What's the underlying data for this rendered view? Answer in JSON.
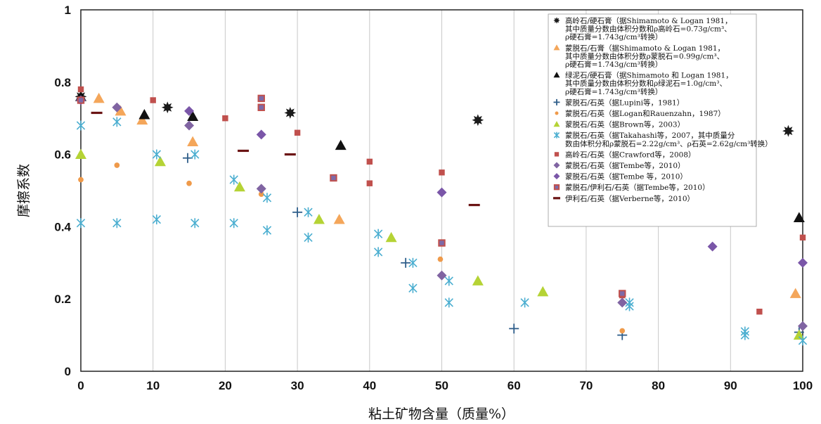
{
  "chart_data": {
    "type": "scatter",
    "xlabel": "粘土矿物含量（质量%）",
    "ylabel": "摩擦系数",
    "xlim": [
      0,
      100
    ],
    "ylim": [
      0,
      1
    ],
    "xticks": [
      0,
      10,
      20,
      30,
      40,
      50,
      60,
      70,
      80,
      90,
      100
    ],
    "yticks": [
      0,
      0.2,
      0.4,
      0.6,
      0.8,
      1
    ],
    "xtick_labels": [
      "0",
      "10",
      "20",
      "30",
      "40",
      "50",
      "60",
      "70",
      "80",
      "90",
      "100"
    ],
    "ytick_labels": [
      "0",
      "0.2",
      "0.4",
      "0.6",
      "0.8",
      "1"
    ],
    "grid": "vertical",
    "legend_position": "top-right",
    "series": [
      {
        "name": "高岭石/硬石膏（据Shimamoto & Logan 1981，其中质量分数由体积分数和ρ高岭石=0.73g/cm³、ρ硬石膏=1.743g/cm³转换）",
        "legend_lines": [
          "高岭石/硬石膏（据Shimamoto & Logan 1981，",
          "其中质量分数由体积分数和ρ高岭石=0.73g/cm³、",
          "ρ硬石膏=1.743g/cm³转换）"
        ],
        "marker": "burst",
        "color": "#1a1a1a",
        "x": [
          0,
          12,
          29,
          55,
          98
        ],
        "y": [
          0.76,
          0.73,
          0.715,
          0.695,
          0.665
        ]
      },
      {
        "name": "蒙脱石/石膏（据Shimamoto & Logan 1981，其中质量分数由体积分数ρ蒙脱石=0.99g/cm³、ρ硬石膏=1.743g/cm³转换）",
        "legend_lines": [
          "蒙脱石/石膏（据Shimamoto & Logan 1981，",
          "其中质量分数由体积分数ρ蒙脱石=0.99g/cm³、",
          "ρ硬石膏=1.743g/cm³转换）"
        ],
        "marker": "triangle",
        "color": "#f4a65a",
        "x": [
          2.5,
          5.5,
          8.5,
          15.5,
          35.8,
          99
        ],
        "y": [
          0.755,
          0.72,
          0.695,
          0.635,
          0.42,
          0.215
        ]
      },
      {
        "name": "绿泥石/硬石膏（据Shimamoto和Logan 1981，其中质量分数由体积分数和ρ绿泥石=1.0g/cm³、ρ硬石膏=1.743g/cm³转换）",
        "legend_lines": [
          "绿泥石/硬石膏（据Shimamoto 和 Logan 1981，",
          "其中质量分数由体积分数和ρ绿泥石=1.0g/cm³、",
          "ρ硬石膏=1.743g/cm³转换）"
        ],
        "marker": "triangle",
        "color": "#111111",
        "x": [
          0,
          8.8,
          15.5,
          36,
          99.5
        ],
        "y": [
          0.76,
          0.71,
          0.705,
          0.625,
          0.425
        ]
      },
      {
        "name": "蒙脱石/石英（据Lupini等，1981）",
        "legend_lines": [
          "蒙脱石/石英（据Lupini等，1981）"
        ],
        "marker": "plus",
        "color": "#2f5e8a",
        "x": [
          14.8,
          30,
          45,
          60,
          75,
          99.5
        ],
        "y": [
          0.59,
          0.44,
          0.3,
          0.118,
          0.1,
          0.108
        ]
      },
      {
        "name": "蒙脱石/石英（据Logan和Rauenzahn，1987）",
        "legend_lines": [
          "蒙脱石/石英（据Logan和Rauenzahn，1987）"
        ],
        "marker": "circle",
        "color": "#ef9a4a",
        "x": [
          0,
          5,
          15,
          25,
          49.8,
          75
        ],
        "y": [
          0.53,
          0.57,
          0.52,
          0.49,
          0.31,
          0.112
        ]
      },
      {
        "name": "蒙脱石/石英（据Brown等，2003）",
        "legend_lines": [
          "蒙脱石/石英（据Brown等，2003）"
        ],
        "marker": "triangle",
        "color": "#b5d335",
        "x": [
          0,
          11,
          22,
          33,
          43,
          55,
          64,
          99.5
        ],
        "y": [
          0.6,
          0.58,
          0.51,
          0.42,
          0.37,
          0.25,
          0.22,
          0.1
        ]
      },
      {
        "name": "蒙脱石/石英（据Takahashi等，2007，其中质量分数由体积分和ρ蒙脱石=2.22g/cm³、ρ石英=2.62g/cm³转换）",
        "legend_lines": [
          "蒙脱石/石英（据Takahashi等，2007，其中质量分",
          "数由体积分和ρ蒙脱石=2.22g/cm³、ρ石英=2.62g/cm³转换）"
        ],
        "marker": "asterisk",
        "color": "#4aaed0",
        "x": [
          0,
          0,
          5,
          5,
          10.5,
          10.5,
          15.8,
          15.8,
          21.2,
          21.2,
          25.8,
          25.8,
          31.5,
          31.5,
          41.2,
          41.2,
          46,
          46,
          51,
          51,
          61.5,
          76,
          76,
          92,
          92,
          100
        ],
        "y": [
          0.68,
          0.41,
          0.69,
          0.41,
          0.6,
          0.42,
          0.6,
          0.41,
          0.53,
          0.41,
          0.48,
          0.39,
          0.44,
          0.37,
          0.38,
          0.33,
          0.3,
          0.23,
          0.25,
          0.19,
          0.19,
          0.19,
          0.18,
          0.11,
          0.1,
          0.085
        ]
      },
      {
        "name": "高岭石/石英（据Crawford等，2008）",
        "legend_lines": [
          "高岭石/石英（据Crawford等，2008）"
        ],
        "marker": "square",
        "color": "#c0504d",
        "x": [
          0,
          10,
          20,
          30,
          40,
          40,
          50,
          75,
          94,
          100
        ],
        "y": [
          0.78,
          0.75,
          0.7,
          0.66,
          0.58,
          0.52,
          0.55,
          0.21,
          0.165,
          0.37
        ]
      },
      {
        "name": "蒙脱石/石英（据Tembe等，2010）",
        "legend_lines": [
          "蒙脱石/石英（据Tembe等，2010）"
        ],
        "marker": "diamond",
        "color": "#8064a2",
        "x": [
          5,
          15,
          25,
          50,
          75,
          100
        ],
        "y": [
          0.73,
          0.68,
          0.505,
          0.265,
          0.19,
          0.125
        ]
      },
      {
        "name": "蒙脱石/石英（据Tembe 等，2010）",
        "legend_lines": [
          "蒙脱石/石英（据Tembe 等，2010）"
        ],
        "marker": "diamond",
        "color": "#7a56a8",
        "x": [
          0,
          15,
          25,
          50,
          87.5,
          100
        ],
        "y": [
          0.75,
          0.72,
          0.655,
          0.495,
          0.345,
          0.3
        ]
      },
      {
        "name": "蒙脱石/伊利石/石英（据Tembe等，2010）",
        "legend_lines": [
          "蒙脱石/伊利石/石英（据Tembe等，2010）"
        ],
        "marker": "square-outline",
        "color": "#c0504d",
        "x": [
          0,
          25,
          25,
          35,
          50,
          75
        ],
        "y": [
          0.75,
          0.755,
          0.73,
          0.535,
          0.355,
          0.215
        ]
      },
      {
        "name": "伊利石/石英（据Verberne等，2010）",
        "legend_lines": [
          "伊利石/石英（据Verberne等，2010）"
        ],
        "marker": "dash",
        "color": "#6b1414",
        "x": [
          2.2,
          22.5,
          29,
          54.5
        ],
        "y": [
          0.715,
          0.61,
          0.6,
          0.46
        ]
      }
    ]
  }
}
